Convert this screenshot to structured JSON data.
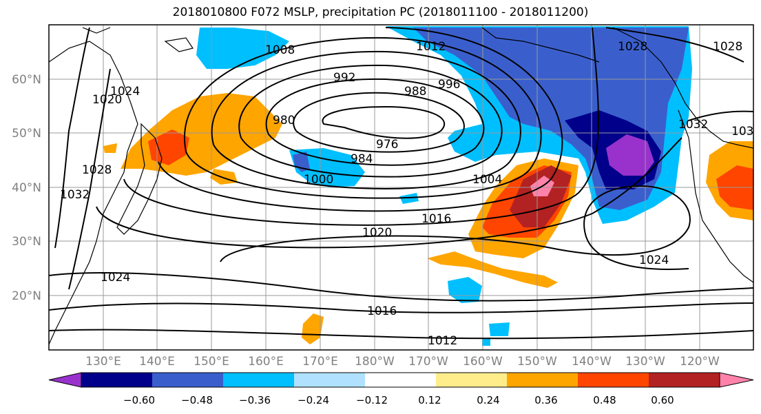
{
  "title": "2018010800 F072 MSLP, precipitation PC (2018011100 - 2018011200)",
  "lat_labels": [
    "60°N",
    "50°N",
    "40°N",
    "30°N",
    "20°N"
  ],
  "lon_labels": [
    "130°E",
    "140°E",
    "150°E",
    "160°E",
    "170°E",
    "180°W",
    "170°W",
    "160°W",
    "150°W",
    "140°W",
    "130°W",
    "120°W"
  ],
  "isobar_labels": [
    "1008",
    "1012",
    "1028",
    "1028",
    "992",
    "996",
    "988",
    "980",
    "976",
    "984",
    "1000",
    "1004",
    "1016",
    "1020",
    "1024",
    "1024",
    "1016",
    "1012",
    "1020",
    "1024",
    "1028",
    "1032",
    "1032",
    "103"
  ],
  "colorbar": {
    "ticks": [
      "−0.60",
      "−0.48",
      "−0.36",
      "−0.24",
      "−0.12",
      "0.12",
      "0.24",
      "0.36",
      "0.48",
      "0.60"
    ],
    "colors": [
      "#9932CC",
      "#00008B",
      "#3A5FCD",
      "#00BFFF",
      "#B0E2FF",
      "#FFFFFF",
      "#FFEC8B",
      "#FFA500",
      "#FF4500",
      "#B22222",
      "#FF82AB"
    ]
  }
}
